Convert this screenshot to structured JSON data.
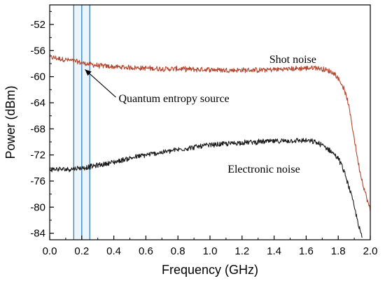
{
  "chart_data": {
    "type": "line",
    "xlabel": "Frequency (GHz)",
    "ylabel": "Power (dBm)",
    "xlim": [
      0.0,
      2.0
    ],
    "ylim": [
      -85,
      -49
    ],
    "xticks": [
      0.0,
      0.2,
      0.4,
      0.6,
      0.8,
      1.0,
      1.2,
      1.4,
      1.6,
      1.8,
      2.0
    ],
    "xtick_labels": [
      "0.0",
      "0.2",
      "0.4",
      "0.6",
      "0.8",
      "1.0",
      "1.2",
      "1.4",
      "1.6",
      "1.8",
      "2.0"
    ],
    "yticks": [
      -52,
      -56,
      -60,
      -64,
      -68,
      -72,
      -76,
      -80,
      -84
    ],
    "ytick_labels": [
      "-52",
      "-56",
      "-60",
      "-64",
      "-68",
      "-72",
      "-76",
      "-80",
      "-84"
    ],
    "grid": false,
    "series": [
      {
        "name": "Shot noise",
        "color": "#b5452e",
        "x": [
          0.0,
          0.05,
          0.1,
          0.15,
          0.2,
          0.25,
          0.3,
          0.35,
          0.4,
          0.5,
          0.6,
          0.7,
          0.8,
          0.9,
          1.0,
          1.1,
          1.2,
          1.3,
          1.4,
          1.5,
          1.6,
          1.65,
          1.7,
          1.75,
          1.78,
          1.8,
          1.83,
          1.86,
          1.88,
          1.9,
          1.92,
          1.94,
          1.96,
          1.98,
          2.0
        ],
        "y": [
          -57.0,
          -57.2,
          -57.4,
          -57.6,
          -57.9,
          -58.1,
          -58.3,
          -58.4,
          -58.5,
          -58.6,
          -58.7,
          -58.8,
          -58.8,
          -58.9,
          -58.9,
          -59.0,
          -59.0,
          -59.0,
          -58.9,
          -58.8,
          -58.7,
          -58.6,
          -58.8,
          -59.2,
          -59.6,
          -60.3,
          -61.5,
          -63.8,
          -66.5,
          -69.5,
          -72.5,
          -75.0,
          -77.0,
          -78.8,
          -80.5
        ]
      },
      {
        "name": "Electronic noise",
        "color": "#1a1a1a",
        "x": [
          0.0,
          0.05,
          0.1,
          0.15,
          0.2,
          0.25,
          0.3,
          0.4,
          0.5,
          0.6,
          0.7,
          0.8,
          0.9,
          1.0,
          1.1,
          1.2,
          1.3,
          1.4,
          1.5,
          1.55,
          1.6,
          1.65,
          1.7,
          1.75,
          1.8,
          1.82,
          1.85,
          1.88,
          1.9,
          1.92,
          1.94,
          1.95
        ],
        "y": [
          -74.2,
          -74.2,
          -74.2,
          -74.1,
          -74.0,
          -73.8,
          -73.6,
          -73.1,
          -72.5,
          -72.0,
          -71.6,
          -71.2,
          -70.8,
          -70.5,
          -70.3,
          -70.1,
          -70.0,
          -69.9,
          -69.8,
          -69.8,
          -69.8,
          -70.0,
          -70.5,
          -71.3,
          -72.5,
          -73.5,
          -75.5,
          -78.0,
          -80.0,
          -82.0,
          -84.0,
          -84.8
        ]
      }
    ],
    "highlight_band": {
      "x_start": 0.15,
      "x_end": 0.25,
      "center_line": 0.2
    },
    "annotations": [
      {
        "text": "Shot noise",
        "x": 1.37,
        "y": -57.9
      },
      {
        "text": "Quantum entropy source",
        "x": 0.43,
        "y": -63.9,
        "arrow_to": [
          0.22,
          -58.9
        ]
      },
      {
        "text": "Electronic noise",
        "x": 1.11,
        "y": -74.7
      }
    ]
  }
}
